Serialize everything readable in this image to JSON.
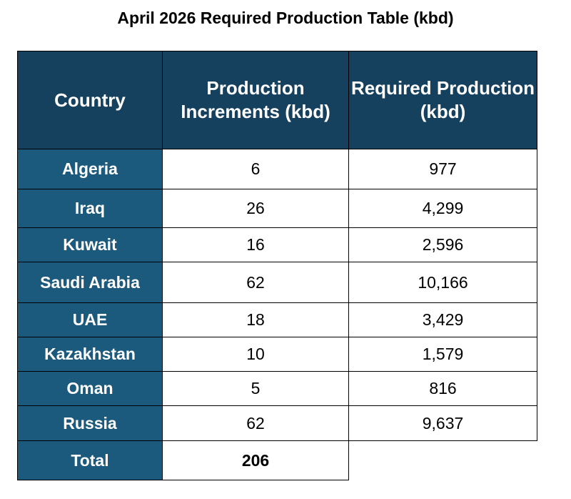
{
  "chart_data": {
    "type": "table",
    "title": "April 2026 Required Production Table (kbd)",
    "columns": [
      "Country",
      "Production Increments (kbd)",
      "Required Production (kbd)"
    ],
    "rows": [
      {
        "country": "Algeria",
        "increment": "6",
        "required": "977"
      },
      {
        "country": "Iraq",
        "increment": "26",
        "required": "4,299"
      },
      {
        "country": "Kuwait",
        "increment": "16",
        "required": "2,596"
      },
      {
        "country": "Saudi Arabia",
        "increment": "62",
        "required": "10,166"
      },
      {
        "country": "UAE",
        "increment": "18",
        "required": "3,429"
      },
      {
        "country": "Kazakhstan",
        "increment": "10",
        "required": "1,579"
      },
      {
        "country": "Oman",
        "increment": "5",
        "required": "816"
      },
      {
        "country": "Russia",
        "increment": "62",
        "required": "9,637"
      }
    ],
    "total": {
      "label": "Total",
      "increment": "206"
    }
  },
  "colors": {
    "header": "#16415e",
    "row_header": "#1c5a7d"
  }
}
